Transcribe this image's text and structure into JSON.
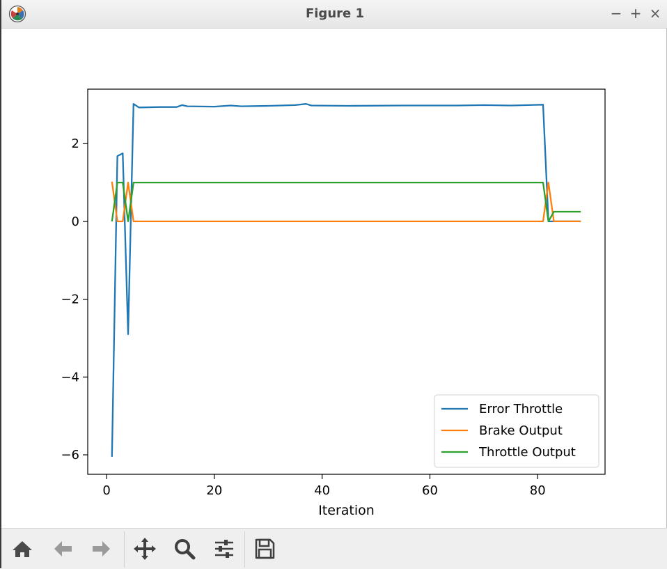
{
  "window": {
    "title": "Figure 1",
    "controls": {
      "minimize": "−",
      "maximize": "+",
      "close": "×"
    }
  },
  "toolbar": {
    "tools": [
      "home-icon",
      "back-arrow-icon",
      "forward-arrow-icon",
      "pan-icon",
      "zoom-icon",
      "configure-subplots-icon",
      "save-icon"
    ]
  },
  "colors": {
    "error_throttle": "#1f77b4",
    "brake_output": "#ff7f0e",
    "throttle_output": "#2ca02c"
  },
  "chart_data": {
    "type": "line",
    "xlabel": "Iteration",
    "ylabel": "",
    "xlim": [
      -3.5,
      92.5
    ],
    "ylim": [
      -6.5,
      3.4
    ],
    "xticks": [
      0,
      20,
      40,
      60,
      80
    ],
    "yticks": [
      -6,
      -4,
      -2,
      0,
      2
    ],
    "xtick_labels": [
      "0",
      "20",
      "40",
      "60",
      "80"
    ],
    "ytick_labels": [
      "−6",
      "−4",
      "−2",
      "0",
      "2"
    ],
    "legend_position": "lower-right",
    "series": [
      {
        "name": "Error Throttle",
        "color": "#1f77b4",
        "points": [
          [
            1,
            -6.05
          ],
          [
            2,
            1.68
          ],
          [
            3,
            1.75
          ],
          [
            4,
            -2.9
          ],
          [
            5,
            3.02
          ],
          [
            6,
            2.93
          ],
          [
            10,
            2.94
          ],
          [
            13,
            2.94
          ],
          [
            14,
            2.99
          ],
          [
            15,
            2.96
          ],
          [
            20,
            2.95
          ],
          [
            23,
            2.98
          ],
          [
            25,
            2.96
          ],
          [
            30,
            2.97
          ],
          [
            35,
            2.99
          ],
          [
            37,
            3.02
          ],
          [
            38,
            2.98
          ],
          [
            45,
            2.97
          ],
          [
            55,
            2.98
          ],
          [
            60,
            2.98
          ],
          [
            65,
            2.98
          ],
          [
            70,
            2.99
          ],
          [
            75,
            2.98
          ],
          [
            81,
            3.0
          ],
          [
            82,
            0.0
          ],
          [
            83,
            0.0
          ],
          [
            88,
            0.0
          ]
        ]
      },
      {
        "name": "Brake Output",
        "color": "#ff7f0e",
        "points": [
          [
            1,
            1.02
          ],
          [
            2,
            0.0
          ],
          [
            3,
            0.0
          ],
          [
            4,
            1.0
          ],
          [
            5,
            0.0
          ],
          [
            81,
            0.0
          ],
          [
            82,
            1.0
          ],
          [
            83,
            0.0
          ],
          [
            88,
            0.0
          ]
        ]
      },
      {
        "name": "Throttle Output",
        "color": "#2ca02c",
        "points": [
          [
            1,
            0.0
          ],
          [
            2,
            1.0
          ],
          [
            3,
            1.0
          ],
          [
            4,
            0.0
          ],
          [
            5,
            1.0
          ],
          [
            81,
            1.0
          ],
          [
            82,
            0.0
          ],
          [
            83,
            0.25
          ],
          [
            88,
            0.25
          ]
        ]
      }
    ]
  }
}
